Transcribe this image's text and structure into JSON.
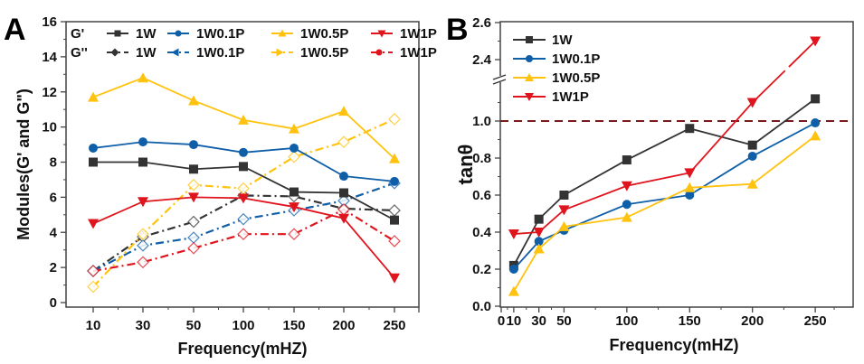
{
  "chart_data": [
    {
      "panel": "A",
      "type": "line",
      "title": "",
      "xlabel": "Frequency(mHZ)",
      "ylabel": "Modules(G' and G\")",
      "categories": [
        "10",
        "30",
        "50",
        "100",
        "150",
        "200",
        "250"
      ],
      "ylim": [
        0,
        16
      ],
      "yticks": [
        0,
        2,
        4,
        6,
        8,
        10,
        12,
        14,
        16
      ],
      "grid": false,
      "legend_position": "top",
      "legend_row_labels": [
        "G'",
        "G''"
      ],
      "series": [
        {
          "name": "1W",
          "modulus": "G'",
          "color": "#333333",
          "style": "solid",
          "marker": "square",
          "values": [
            8.0,
            8.0,
            7.6,
            7.75,
            6.3,
            6.25,
            4.7
          ]
        },
        {
          "name": "1W0.1P",
          "modulus": "G'",
          "color": "#0f5fa8",
          "style": "solid",
          "marker": "circle",
          "values": [
            8.8,
            9.15,
            9.0,
            8.55,
            8.8,
            7.2,
            6.9
          ]
        },
        {
          "name": "1W0.5P",
          "modulus": "G'",
          "color": "#ffc20e",
          "style": "solid",
          "marker": "triangle-up",
          "values": [
            11.7,
            12.8,
            11.5,
            10.4,
            9.9,
            10.9,
            8.2
          ]
        },
        {
          "name": "1W1P",
          "modulus": "G'",
          "color": "#e0141c",
          "style": "solid",
          "marker": "triangle-down",
          "values": [
            4.5,
            5.75,
            6.0,
            5.95,
            5.45,
            4.8,
            1.4
          ]
        },
        {
          "name": "1W",
          "modulus": "G''",
          "color": "#333333",
          "style": "dashdot",
          "marker": "diamond-open",
          "values": [
            1.8,
            3.75,
            4.6,
            6.1,
            6.05,
            5.35,
            5.25
          ]
        },
        {
          "name": "1W0.1P",
          "modulus": "G''",
          "color": "#0f5fa8",
          "style": "dashdot",
          "marker": "diamond-open",
          "values": [
            1.8,
            3.25,
            3.7,
            4.75,
            5.25,
            5.8,
            6.8
          ]
        },
        {
          "name": "1W0.5P",
          "modulus": "G''",
          "color": "#ffc20e",
          "style": "dashdot",
          "marker": "diamond-open",
          "values": [
            0.9,
            3.9,
            6.7,
            6.5,
            8.3,
            9.15,
            10.45
          ]
        },
        {
          "name": "1W1P",
          "modulus": "G''",
          "color": "#e0141c",
          "style": "dashdot",
          "marker": "diamond-open",
          "values": [
            1.8,
            2.3,
            3.1,
            3.9,
            3.9,
            5.3,
            3.5
          ]
        }
      ],
      "legend_markers_Gpp": [
        "diamond",
        "triangle-left",
        "triangle-right",
        "circle"
      ]
    },
    {
      "panel": "B",
      "type": "line",
      "title": "",
      "xlabel": "Frequency(mHZ)",
      "ylabel": "tanθ",
      "categories": [
        "10",
        "30",
        "50",
        "100",
        "150",
        "200",
        "250"
      ],
      "xticks_extra": [
        "0"
      ],
      "ylim": [
        0,
        2.6
      ],
      "y_axis_break": [
        1.15,
        2.3
      ],
      "yticks": [
        "0.0",
        "0.2",
        "0.4",
        "0.6",
        "0.8",
        "1.0",
        "2.4",
        "2.6"
      ],
      "reference_line": {
        "y": 1.0,
        "color": "#7b1a1a",
        "style": "dashed"
      },
      "grid": false,
      "legend_position": "top-left",
      "series": [
        {
          "name": "1W",
          "color": "#333333",
          "marker": "square",
          "values": [
            0.22,
            0.47,
            0.6,
            0.79,
            0.96,
            0.87,
            1.12
          ]
        },
        {
          "name": "1W0.1P",
          "color": "#0f5fa8",
          "marker": "circle",
          "values": [
            0.2,
            0.35,
            0.41,
            0.55,
            0.6,
            0.81,
            0.99
          ]
        },
        {
          "name": "1W0.5P",
          "color": "#ffc20e",
          "marker": "triangle-up",
          "values": [
            0.08,
            0.31,
            0.43,
            0.48,
            0.64,
            0.66,
            0.92
          ]
        },
        {
          "name": "1W1P",
          "color": "#e0141c",
          "marker": "triangle-down",
          "values": [
            0.39,
            0.4,
            0.52,
            0.65,
            0.72,
            1.1,
            2.5
          ]
        }
      ]
    }
  ],
  "labels": {
    "panelA": "A",
    "panelB": "B",
    "gprime": "G'",
    "gdouble": "G''"
  }
}
